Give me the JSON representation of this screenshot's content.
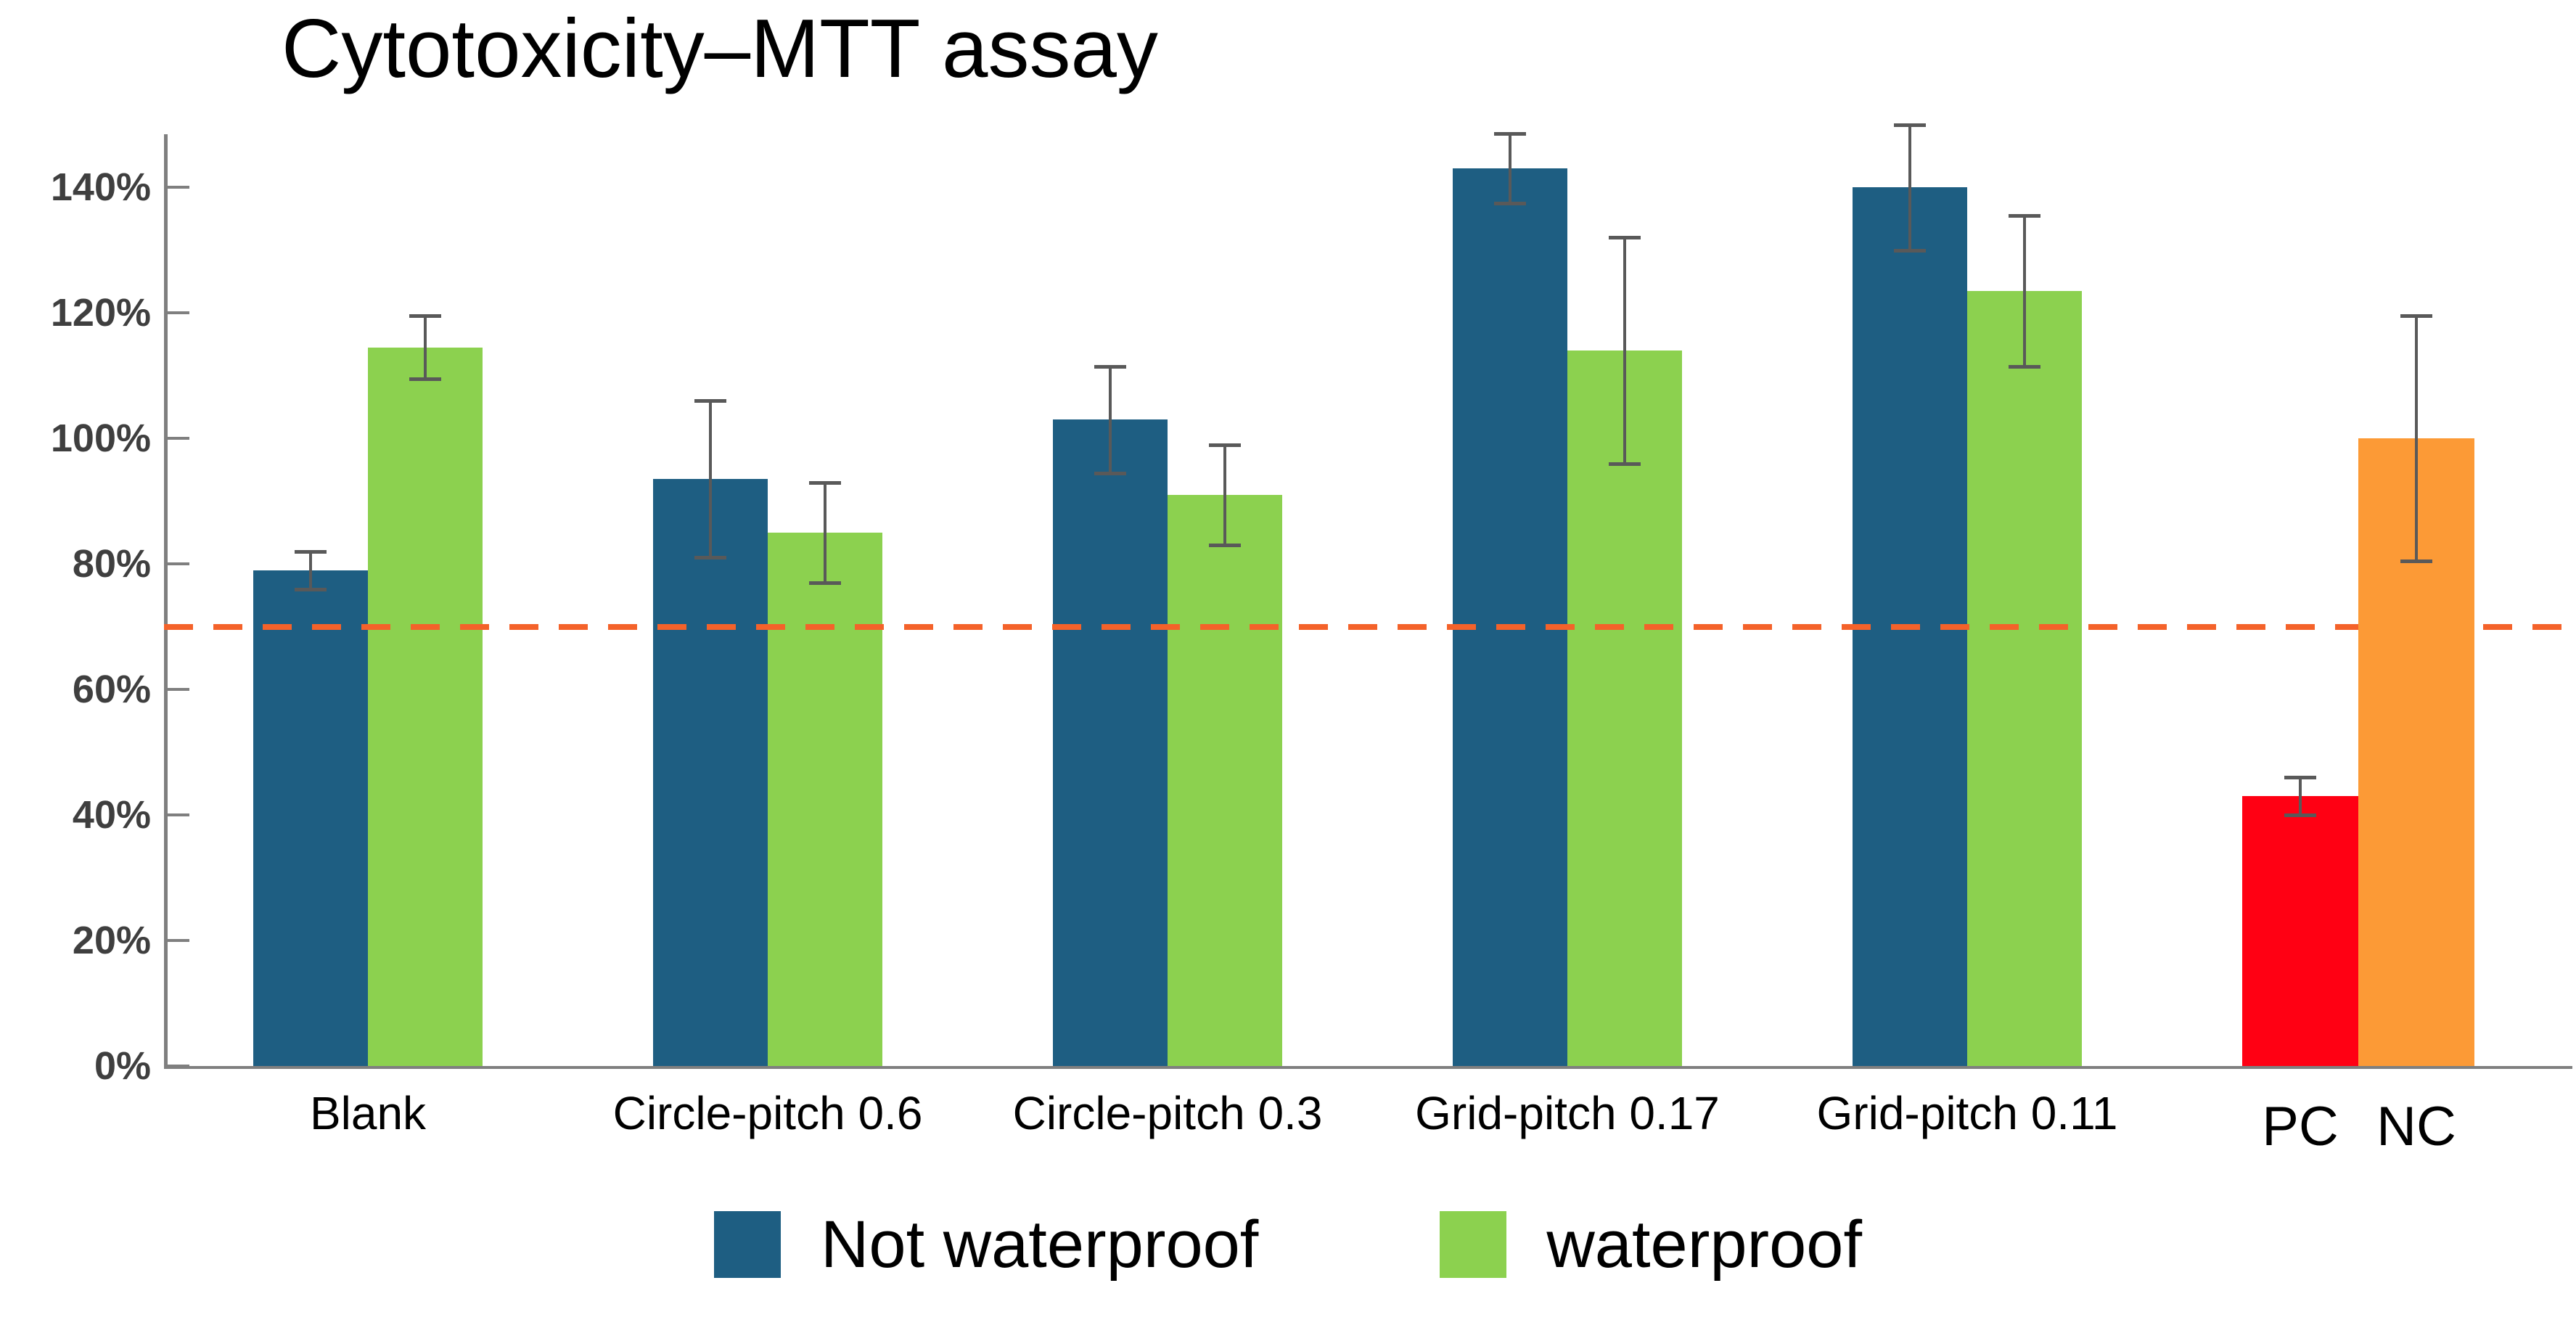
{
  "title": "Cytotoxicity–MTT assay",
  "colors": {
    "not_waterproof": "#1E5E82",
    "waterproof": "#8CD14F",
    "pc": "#FF0013",
    "nc": "#FC9A36",
    "threshold_line": "#F4622A",
    "axis": "#7F7F7F",
    "error_bar": "#595959",
    "tick_label": "#3F3F3F"
  },
  "legend": [
    {
      "label": "Not waterproof",
      "color": "#1E5E82"
    },
    {
      "label": "waterproof",
      "color": "#8CD14F"
    }
  ],
  "chart_data": {
    "type": "bar",
    "title": "Cytotoxicity–MTT assay",
    "ylabel": "",
    "xlabel": "",
    "unit": "%",
    "categories": [
      "Blank",
      "Circle-pitch 0.6",
      "Circle-pitch 0.3",
      "Grid-pitch 0.17",
      "Grid-pitch 0.11"
    ],
    "series": [
      {
        "name": "Not waterproof",
        "color": "#1E5E82",
        "values": [
          79,
          93.5,
          103,
          143,
          140
        ],
        "errors": [
          3,
          12.5,
          8.5,
          5.5,
          10
        ]
      },
      {
        "name": "waterproof",
        "color": "#8CD14F",
        "values": [
          114.5,
          85,
          91,
          114,
          123.5
        ],
        "errors": [
          5,
          8,
          8,
          18,
          12
        ]
      }
    ],
    "controls": [
      {
        "label": "PC",
        "value": 43,
        "error": 3,
        "color": "#FF0013"
      },
      {
        "label": "NC",
        "value": 100,
        "error": 19.5,
        "color": "#FC9A36"
      }
    ],
    "threshold": {
      "value": 70,
      "style": "dashed",
      "color": "#F4622A"
    },
    "y_axis": {
      "tick_labels": [
        "0%",
        "20%",
        "40%",
        "60%",
        "80%",
        "100%",
        "120%",
        "140%"
      ],
      "tick_values": [
        0,
        20,
        40,
        60,
        80,
        100,
        120,
        140
      ],
      "min": 0,
      "max": 148,
      "unit": "%"
    },
    "grid": false,
    "legend_position": "bottom"
  }
}
